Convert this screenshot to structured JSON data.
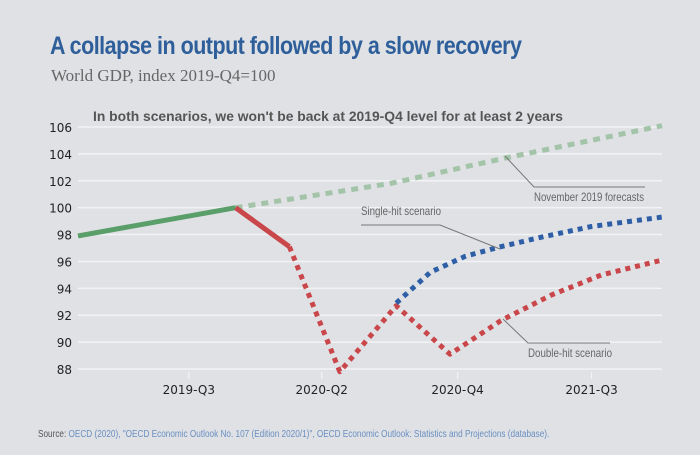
{
  "chart_data": {
    "type": "line",
    "title": "A collapse in output followed by a slow recovery",
    "subtitle": "World GDP, index 2019-Q4=100",
    "annotation": "In both scenarios, we won't be back at 2019-Q4 level for at least 2 years",
    "xlabel": "",
    "ylabel": "",
    "ylim": [
      88,
      106
    ],
    "xlim": [
      -2.2,
      9.4
    ],
    "yticks": [
      88,
      90,
      92,
      94,
      96,
      98,
      100,
      102,
      104,
      106
    ],
    "xticks": [
      {
        "label": "2019-Q3",
        "x": 0
      },
      {
        "label": "2020-Q2",
        "x": 2.64
      },
      {
        "label": "2020-Q4",
        "x": 5.34
      },
      {
        "label": "2021-Q3",
        "x": 8.0
      }
    ],
    "grid": true,
    "series": [
      {
        "name": "Historical",
        "color": "#5a9e6a",
        "style": "solid",
        "points": [
          [
            -2.2,
            97.9
          ],
          [
            0.93,
            100.0
          ]
        ]
      },
      {
        "name": "November 2019 forecasts",
        "color": "#a3c4a9",
        "style": "dashed",
        "points": [
          [
            0.93,
            100.0
          ],
          [
            4.0,
            101.8
          ],
          [
            6.3,
            103.7
          ],
          [
            9.4,
            106.1
          ]
        ]
      },
      {
        "name": "Observed decline",
        "color": "#c9474a",
        "style": "solid",
        "points": [
          [
            0.93,
            100.0
          ],
          [
            2.0,
            97.1
          ]
        ]
      },
      {
        "name": "Double-hit scenario",
        "color": "#c9474a",
        "style": "dotted",
        "points": [
          [
            2.0,
            97.1
          ],
          [
            3.0,
            87.8
          ],
          [
            4.12,
            92.7
          ],
          [
            5.19,
            89.1
          ],
          [
            6.2,
            91.6
          ],
          [
            7.2,
            93.5
          ],
          [
            8.2,
            95.0
          ],
          [
            9.4,
            96.1
          ]
        ]
      },
      {
        "name": "Single-hit scenario",
        "color": "#2e5fa6",
        "style": "dotted",
        "points": [
          [
            4.12,
            92.9
          ],
          [
            4.8,
            95.2
          ],
          [
            5.5,
            96.4
          ],
          [
            6.2,
            97.1
          ],
          [
            7.0,
            97.8
          ],
          [
            8.0,
            98.6
          ],
          [
            9.4,
            99.3
          ]
        ]
      }
    ],
    "labels": [
      {
        "text": "November 2019 forecasts",
        "series": "November 2019 forecasts"
      },
      {
        "text": "Single-hit scenario",
        "series": "Single-hit scenario"
      },
      {
        "text": "Double-hit scenario",
        "series": "Double-hit scenario"
      }
    ]
  },
  "source": {
    "label": "Source:",
    "text": " OECD (2020), \"OECD Economic Outlook No. 107 (Edition 2020/1)\", OECD Economic Outlook: Statistics and Projections (database)."
  }
}
